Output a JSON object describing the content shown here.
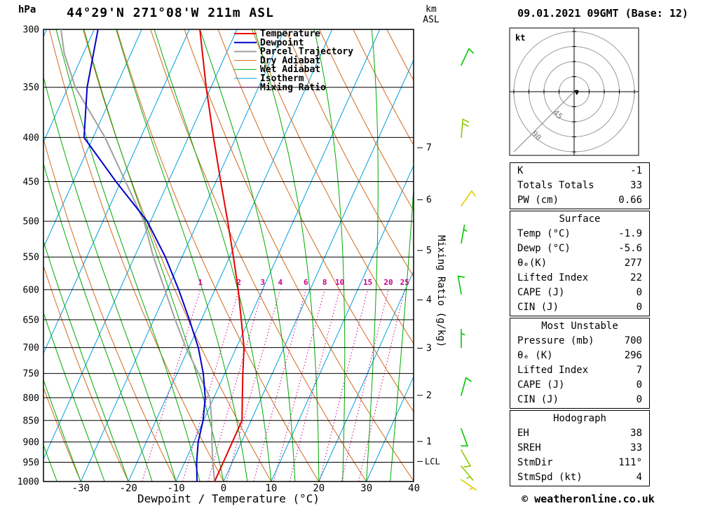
{
  "header": {
    "pressure_unit": "hPa",
    "title": "44°29'N 271°08'W 211m ASL",
    "altitude_unit_line1": "km",
    "altitude_unit_line2": "ASL",
    "datetime": "09.01.2021 09GMT (Base: 12)"
  },
  "skewt": {
    "xlabel": "Dewpoint / Temperature (°C)",
    "right_axis_label": "Mixing Ratio (g/kg)",
    "lcl_label": "LCL",
    "colors": {
      "temperature": "#e60000",
      "dewpoint": "#0000cc",
      "parcel": "#a0a0a0",
      "dry_adiabat": "#d2691e",
      "wet_adiabat": "#00aa00",
      "isotherm": "#00a0e0",
      "mixing_ratio": "#cc0088",
      "grid": "#000000"
    },
    "legend": [
      {
        "label": "Temperature",
        "color": "#e60000",
        "style": "solid",
        "width": 2
      },
      {
        "label": "Dewpoint",
        "color": "#0000cc",
        "style": "solid",
        "width": 2
      },
      {
        "label": "Parcel Trajectory",
        "color": "#a0a0a0",
        "style": "solid",
        "width": 2
      },
      {
        "label": "Dry Adiabat",
        "color": "#d2691e",
        "style": "solid",
        "width": 1
      },
      {
        "label": "Wet Adiabat",
        "color": "#00aa00",
        "style": "solid",
        "width": 1
      },
      {
        "label": "Isotherm",
        "color": "#00a0e0",
        "style": "solid",
        "width": 1
      },
      {
        "label": "Mixing Ratio",
        "color": "#cc0088",
        "style": "dotted",
        "width": 1
      }
    ]
  },
  "chart_data": {
    "type": "skewt-log-p",
    "pressure_axis": {
      "min": 300,
      "max": 1000,
      "ticks": [
        300,
        350,
        400,
        450,
        500,
        550,
        600,
        650,
        700,
        750,
        800,
        850,
        900,
        950,
        1000
      ]
    },
    "temp_axis": {
      "ticks": [
        -30,
        -20,
        -10,
        0,
        10,
        20,
        30,
        40
      ]
    },
    "km_axis": {
      "levels": [
        {
          "km": 1,
          "pressure": 898.8
        },
        {
          "km": 2,
          "pressure": 795.0
        },
        {
          "km": 3,
          "pressure": 701.2
        },
        {
          "km": 4,
          "pressure": 616.6
        },
        {
          "km": 5,
          "pressure": 540.5
        },
        {
          "km": 6,
          "pressure": 472.2
        },
        {
          "km": 7,
          "pressure": 411.1
        }
      ],
      "lcl_pressure": 948
    },
    "temperature_profile": {
      "pressure": [
        1000,
        950,
        900,
        850,
        800,
        750,
        700,
        650,
        600,
        550,
        500,
        450,
        400,
        350,
        300
      ],
      "temp_c": [
        -1.9,
        -1.9,
        -1.9,
        -1.9,
        -4.0,
        -6.2,
        -8.4,
        -11.6,
        -15.1,
        -19.2,
        -23.8,
        -29.0,
        -34.7,
        -41.0,
        -47.8
      ]
    },
    "dewpoint_profile": {
      "pressure": [
        1000,
        950,
        900,
        850,
        800,
        750,
        700,
        650,
        600,
        550,
        500,
        450,
        400,
        350,
        300
      ],
      "temp_c": [
        -5.6,
        -7.5,
        -9.1,
        -10.1,
        -11.8,
        -14.5,
        -18.0,
        -22.5,
        -27.6,
        -33.5,
        -40.7,
        -51.0,
        -61.9,
        -66.0,
        -69.2
      ]
    },
    "parcel_profile": {
      "pressure": [
        1000,
        950,
        900,
        850,
        800,
        750,
        700,
        650,
        600,
        550,
        500,
        450,
        400,
        350,
        320,
        300
      ],
      "temp_c": [
        -1.9,
        -4.1,
        -6.2,
        -8.3,
        -10.8,
        -15.5,
        -20.6,
        -25.5,
        -30.5,
        -36.0,
        -41.4,
        -49.0,
        -57.5,
        -68.5,
        -74.0,
        -77.0
      ]
    },
    "background": {
      "isotherms": {
        "min": -100,
        "max": 40,
        "step": 10
      },
      "dry_adiabats": {
        "min": -30,
        "max": 110,
        "step": 10
      },
      "wet_adiabats": {
        "min": -35,
        "max": 40,
        "step": 5
      },
      "mixing_ratio_g_kg": [
        1,
        2,
        3,
        4,
        6,
        8,
        10,
        15,
        20,
        25
      ]
    },
    "wind_barbs": [
      {
        "pressure": 330,
        "dir_deg": 25,
        "speed_kt": 10,
        "color": "#00c800"
      },
      {
        "pressure": 400,
        "dir_deg": 5,
        "speed_kt": 20,
        "color": "#8fc800"
      },
      {
        "pressure": 480,
        "dir_deg": 35,
        "speed_kt": 10,
        "color": "#e0cc00"
      },
      {
        "pressure": 530,
        "dir_deg": 10,
        "speed_kt": 5,
        "color": "#00c800"
      },
      {
        "pressure": 607,
        "dir_deg": 350,
        "speed_kt": 10,
        "color": "#00c800"
      },
      {
        "pressure": 700,
        "dir_deg": 0,
        "speed_kt": 5,
        "color": "#00c800"
      },
      {
        "pressure": 795,
        "dir_deg": 15,
        "speed_kt": 10,
        "color": "#00c800"
      },
      {
        "pressure": 869,
        "dir_deg": 160,
        "speed_kt": 10,
        "color": "#00c800"
      },
      {
        "pressure": 920,
        "dir_deg": 150,
        "speed_kt": 10,
        "color": "#8fc800"
      },
      {
        "pressure": 960,
        "dir_deg": 140,
        "speed_kt": 5,
        "color": "#8fc800"
      },
      {
        "pressure": 995,
        "dir_deg": 125,
        "speed_kt": 5,
        "color": "#e0cc00"
      }
    ]
  },
  "hodograph": {
    "unit_label": "kt",
    "max_kt": 90,
    "rings_kt": [
      22.5,
      45,
      67.5,
      90
    ],
    "ring_labels": [
      {
        "kt": 45,
        "label": "45"
      },
      {
        "kt": 90,
        "label": "90"
      }
    ],
    "trace_kt": [
      [
        0,
        0
      ],
      [
        3,
        -2
      ],
      [
        6,
        -1
      ],
      [
        4,
        3
      ]
    ],
    "marker_kt": [
      4,
      2
    ]
  },
  "stats": {
    "sections": [
      {
        "title": null,
        "rows": [
          [
            "K",
            "-1"
          ],
          [
            "Totals Totals",
            "33"
          ],
          [
            "PW (cm)",
            "0.66"
          ]
        ]
      },
      {
        "title": "Surface",
        "rows": [
          [
            "Temp (°C)",
            "-1.9"
          ],
          [
            "Dewp (°C)",
            "-5.6"
          ],
          [
            "θₑ(K)",
            "277"
          ],
          [
            "Lifted Index",
            "22"
          ],
          [
            "CAPE (J)",
            "0"
          ],
          [
            "CIN (J)",
            "0"
          ]
        ]
      },
      {
        "title": "Most Unstable",
        "rows": [
          [
            "Pressure (mb)",
            "700"
          ],
          [
            "θₑ (K)",
            "296"
          ],
          [
            "Lifted Index",
            "7"
          ],
          [
            "CAPE (J)",
            "0"
          ],
          [
            "CIN (J)",
            "0"
          ]
        ]
      },
      {
        "title": "Hodograph",
        "rows": [
          [
            "EH",
            "38"
          ],
          [
            "SREH",
            "33"
          ],
          [
            "StmDir",
            "111°"
          ],
          [
            "StmSpd (kt)",
            "4"
          ]
        ]
      }
    ]
  },
  "footer": {
    "copyright": "© weatheronline.co.uk"
  }
}
